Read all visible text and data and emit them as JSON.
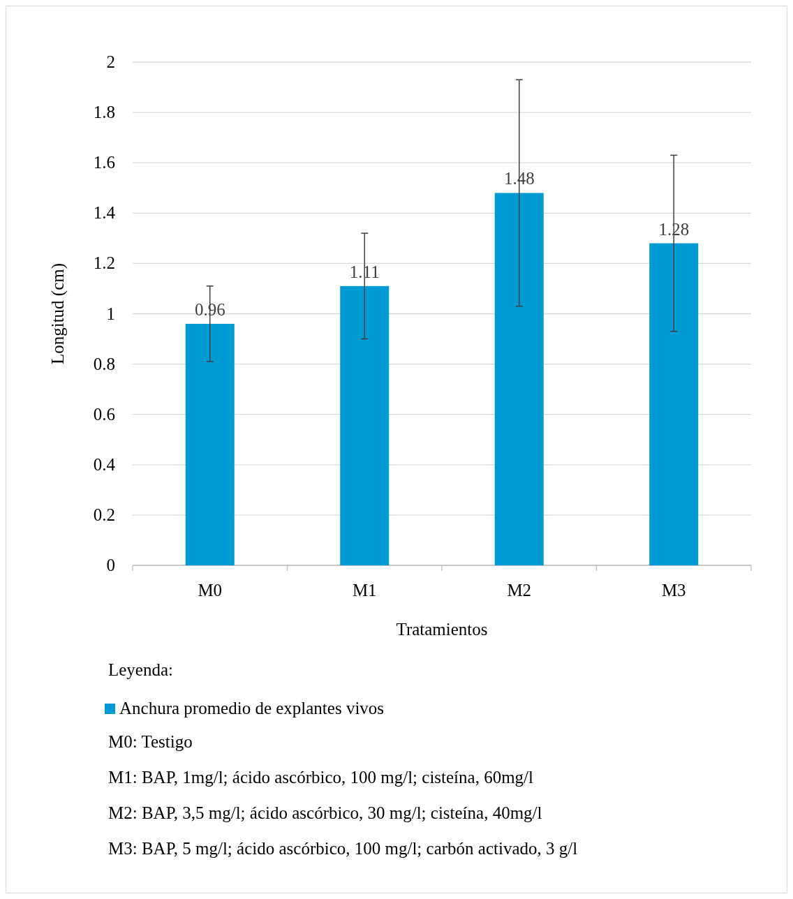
{
  "chart_data": {
    "type": "bar",
    "xlabel": "Tratamientos",
    "ylabel": "Longitud (cm)",
    "categories": [
      "M0",
      "M1",
      "M2",
      "M3"
    ],
    "series": [
      {
        "name": "Anchura promedio de explantes vivos",
        "color": "#009ad4",
        "values": [
          0.96,
          1.11,
          1.48,
          1.28
        ],
        "errors": [
          0.15,
          0.21,
          0.45,
          0.35
        ]
      }
    ],
    "ylim": [
      0,
      2
    ],
    "yticks": [
      0,
      0.2,
      0.4,
      0.6,
      0.8,
      1,
      1.2,
      1.4,
      1.6,
      1.8,
      2
    ],
    "grid": "y",
    "data_labels": true,
    "legend": "bottom",
    "legend_title": "Leyenda:",
    "annotations": [
      "M0: Testigo",
      "M1: BAP, 1mg/l; ácido ascórbico, 100 mg/l; cisteína, 60mg/l",
      "M2: BAP, 3,5 mg/l; ácido ascórbico, 30 mg/l; cisteína, 40mg/l",
      "M3: BAP, 5 mg/l; ácido ascórbico, 100 mg/l; carbón activado, 3 g/l"
    ]
  }
}
